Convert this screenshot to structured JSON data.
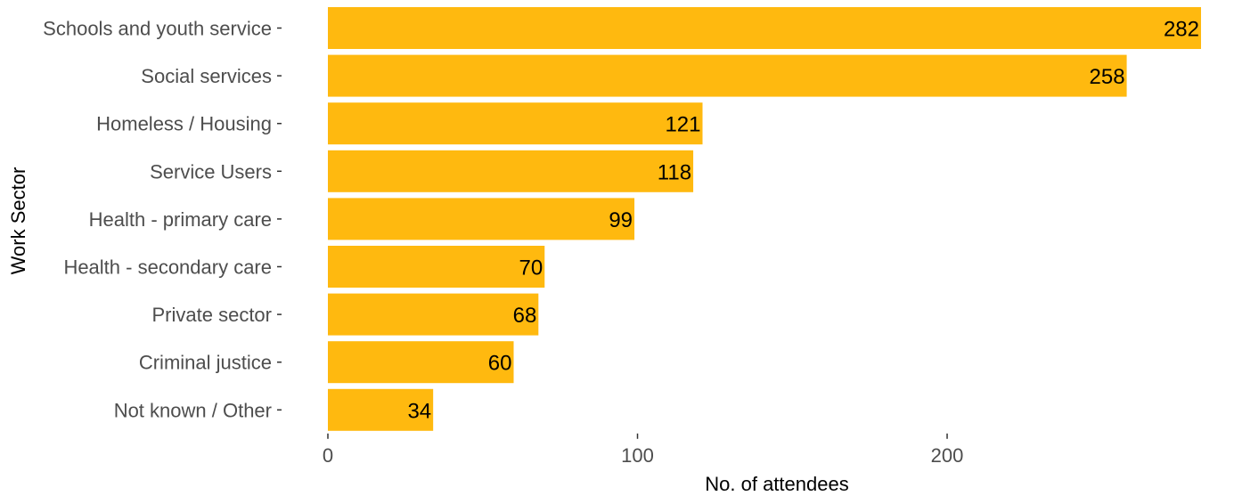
{
  "chart_data": {
    "type": "bar",
    "orientation": "horizontal",
    "categories": [
      "Schools and youth service",
      "Social services",
      "Homeless / Housing",
      "Service Users",
      "Health - primary care",
      "Health - secondary care",
      "Private sector",
      "Criminal justice",
      "Not known / Other"
    ],
    "values": [
      282,
      258,
      121,
      118,
      99,
      70,
      68,
      60,
      34
    ],
    "xlabel": "No. of attendees",
    "ylabel": "Work Sector",
    "xlim": [
      0,
      282
    ],
    "xticks": [
      0,
      100,
      200
    ],
    "bar_color": "#FFB90F",
    "grid": false,
    "legend": "none"
  }
}
